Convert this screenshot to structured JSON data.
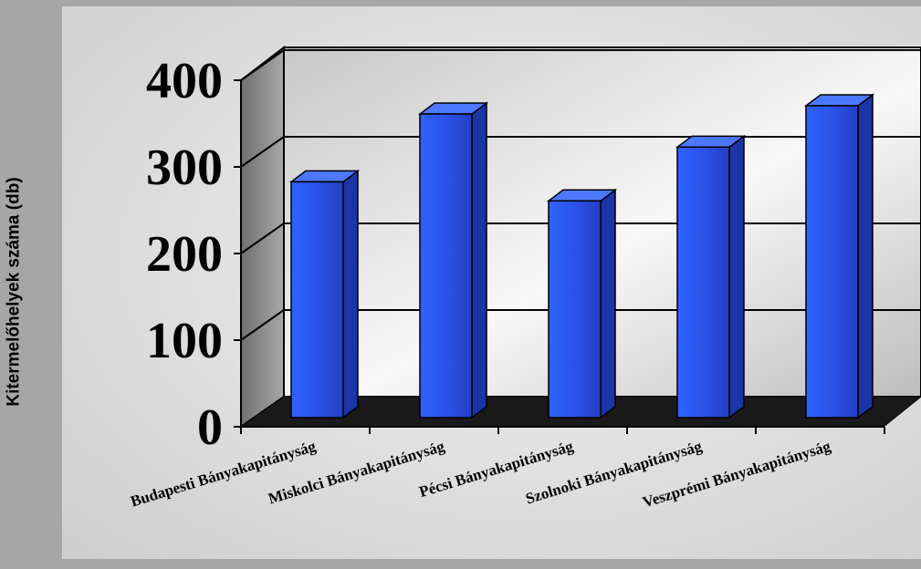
{
  "chart_data": {
    "type": "bar",
    "title": "",
    "xlabel": "",
    "ylabel": "Kitermelőhelyek száma (db)",
    "categories": [
      "Budapesti Bányakapitányság",
      "Miskolci Bányakapitányság",
      "Pécsi Bányakapitányság",
      "Szolnoki Bányakapitányság",
      "Veszprémi Bányakapitányság"
    ],
    "values": [
      285,
      367,
      262,
      327,
      377
    ],
    "ylim": [
      0,
      400
    ],
    "yticks": [
      "0",
      "100",
      "200",
      "300",
      "400"
    ],
    "grid": true,
    "style": "3d",
    "colors": {
      "bar_front": "#2e5cf0",
      "bar_side": "#1a35a8",
      "bar_top": "#4c78ff",
      "floor": "#1a1a1a",
      "frame_bg": "#dedede"
    }
  }
}
